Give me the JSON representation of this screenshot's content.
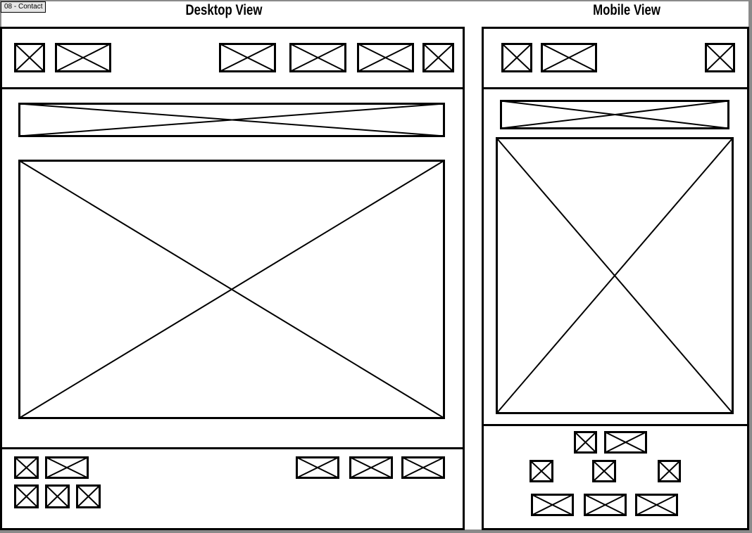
{
  "page_tag": "08 - Contact",
  "views": {
    "desktop": {
      "title": "Desktop View"
    },
    "mobile": {
      "title": "Mobile View"
    }
  },
  "colors": {
    "stroke": "#000000",
    "tag_bg": "#e6e6e6",
    "edge": "#8a8a8a"
  },
  "placeholder_icon": "crossed-box-image-placeholder"
}
